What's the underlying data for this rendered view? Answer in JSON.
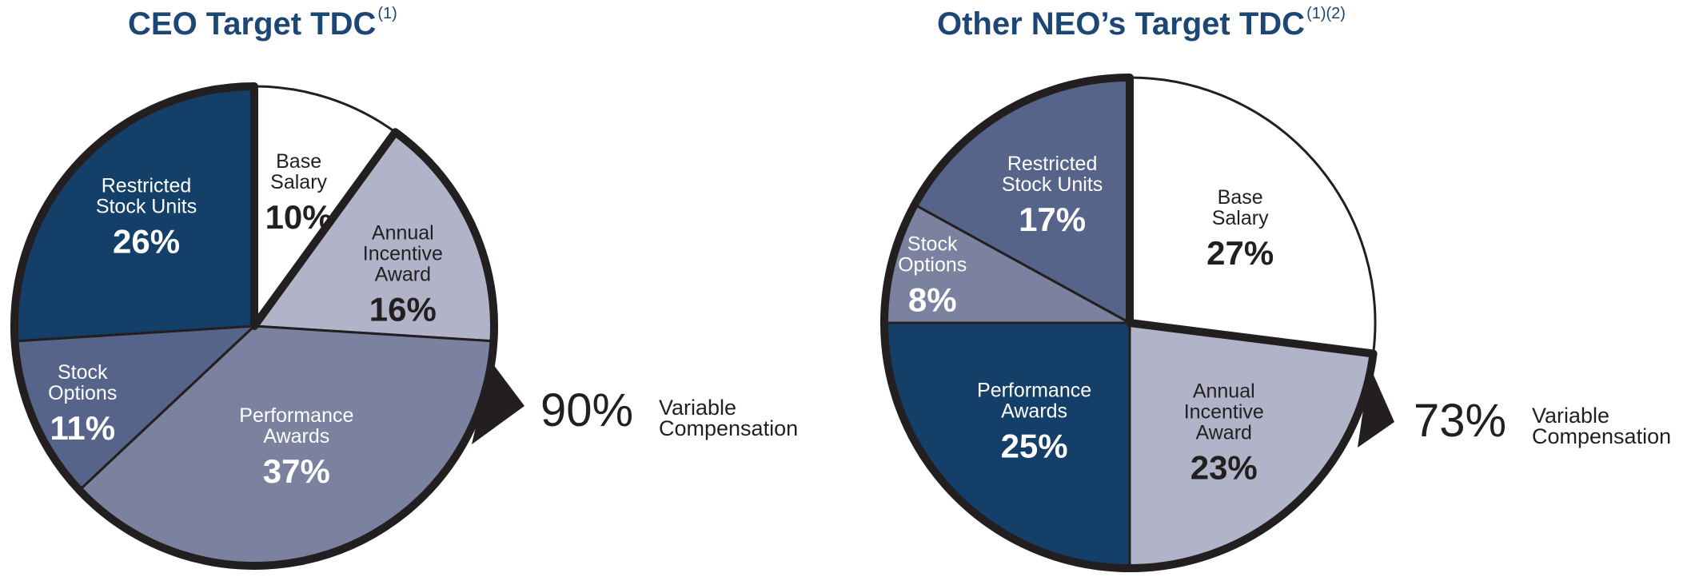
{
  "colors": {
    "title": "#1c4673",
    "base_salary": "#ffffff",
    "annual_incentive": "#b1b4c8",
    "performance_awards": "#7a829f",
    "stock_options": "#57648a",
    "restricted_stock_units": "#133f69",
    "outline": "#231f20",
    "dark_text": "#231f20",
    "light_text": "#ffffff"
  },
  "chart_data": [
    {
      "type": "pie",
      "title": "CEO Target TDC",
      "title_superscript": "(1)",
      "slices": [
        {
          "label": "Base Salary",
          "value": 10,
          "display": "10%",
          "color": "#ffffff",
          "text_color": "#231f20",
          "variable": false
        },
        {
          "label": "Annual Incentive Award",
          "value": 16,
          "display": "16%",
          "color": "#b1b4c8",
          "text_color": "#231f20",
          "variable": true
        },
        {
          "label": "Performance Awards",
          "value": 37,
          "display": "37%",
          "color": "#7a829f",
          "text_color": "#ffffff",
          "variable": true
        },
        {
          "label": "Stock Options",
          "value": 11,
          "display": "11%",
          "color": "#57648a",
          "text_color": "#ffffff",
          "variable": true
        },
        {
          "label": "Restricted Stock Units",
          "value": 26,
          "display": "26%",
          "color": "#133f69",
          "text_color": "#ffffff",
          "variable": true
        }
      ],
      "variable_compensation": {
        "percent": "90%",
        "label": "Variable Compensation"
      }
    },
    {
      "type": "pie",
      "title": "Other NEO’s Target TDC",
      "title_superscript": "(1)(2)",
      "slices": [
        {
          "label": "Base Salary",
          "value": 27,
          "display": "27%",
          "color": "#ffffff",
          "text_color": "#231f20",
          "variable": false
        },
        {
          "label": "Annual Incentive Award",
          "value": 23,
          "display": "23%",
          "color": "#b1b4c8",
          "text_color": "#231f20",
          "variable": true
        },
        {
          "label": "Performance Awards",
          "value": 25,
          "display": "25%",
          "color": "#133f69",
          "text_color": "#ffffff",
          "variable": true
        },
        {
          "label": "Stock Options",
          "value": 8,
          "display": "8%",
          "color": "#7a829f",
          "text_color": "#ffffff",
          "variable": true
        },
        {
          "label": "Restricted Stock Units",
          "value": 17,
          "display": "17%",
          "color": "#57648a",
          "text_color": "#ffffff",
          "variable": true
        }
      ],
      "variable_compensation": {
        "percent": "73%",
        "label": "Variable Compensation"
      }
    }
  ]
}
